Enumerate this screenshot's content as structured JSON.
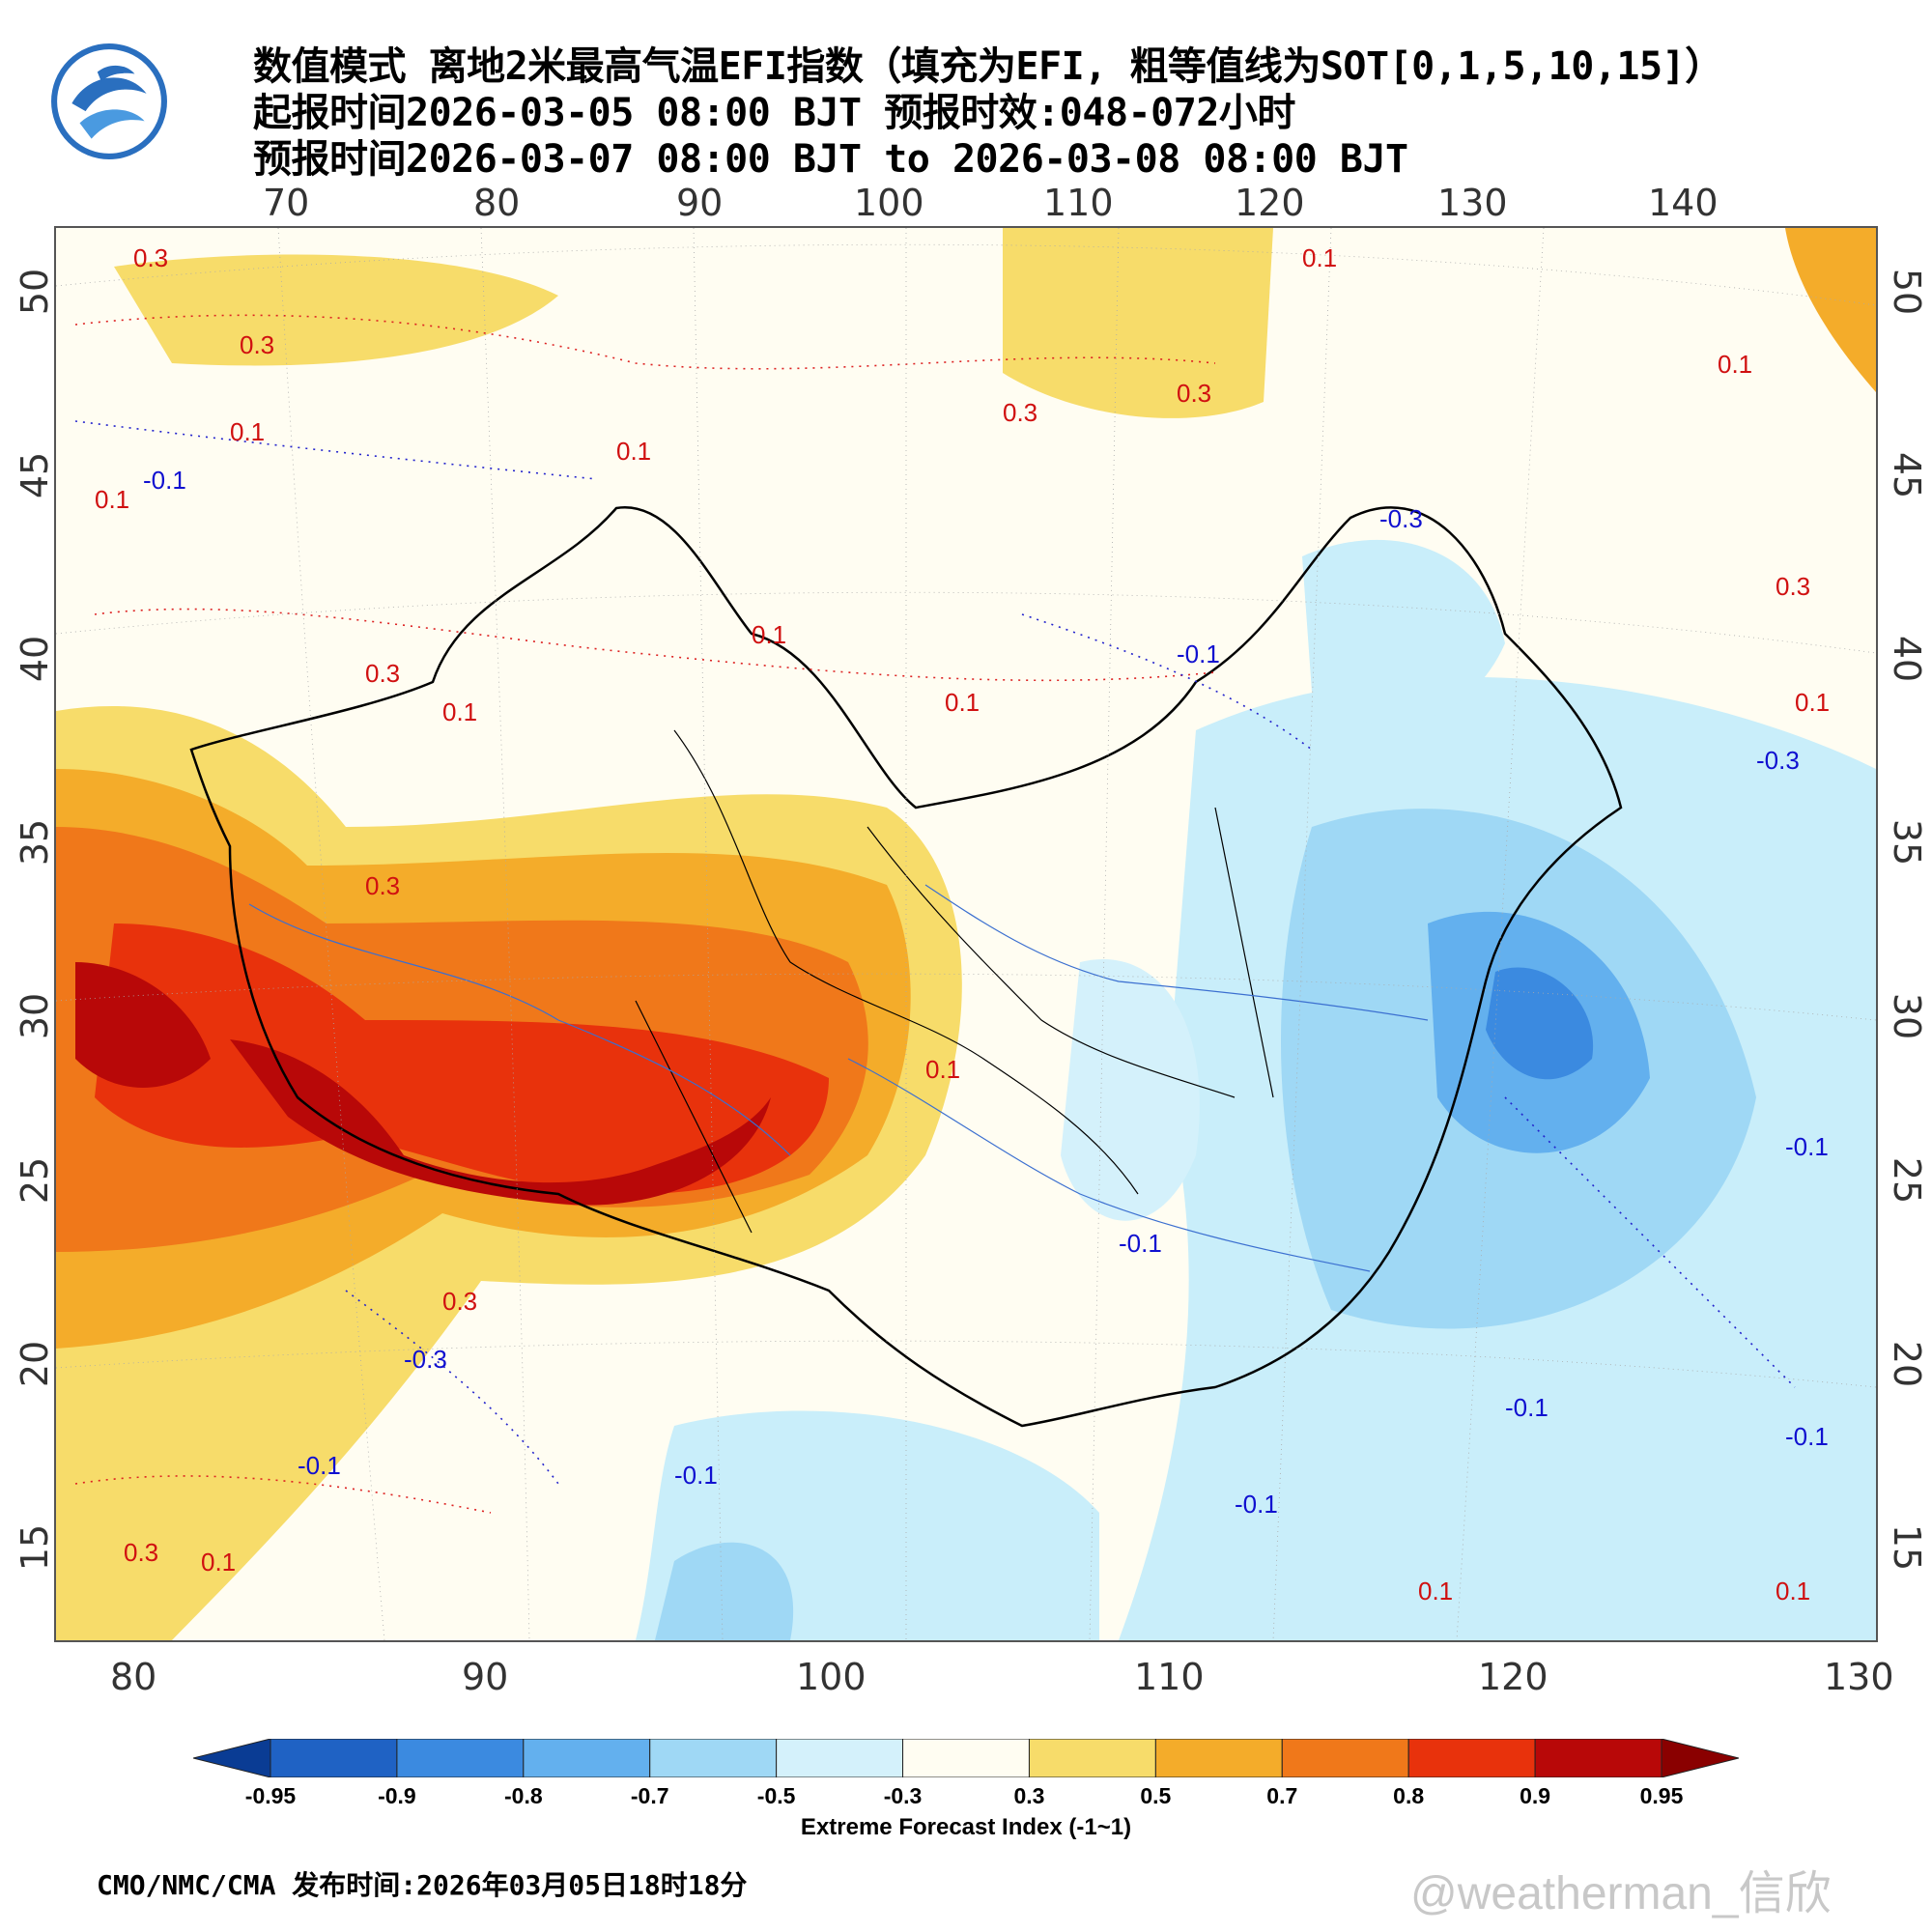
{
  "header": {
    "line1": "数值模式 离地2米最高气温EFI指数（填充为EFI, 粗等值线为SOT[0,1,5,10,15]）",
    "line2": "起报时间2026-03-05 08:00 BJT 预报时效:048-072小时",
    "line3": "预报时间2026-03-07 08:00 BJT to 2026-03-08 08:00 BJT"
  },
  "logo": {
    "icon": "cma-logo-icon",
    "color": "#1f5fa8"
  },
  "top_axis_ticks": [
    "70",
    "80",
    "90",
    "100",
    "110",
    "120",
    "130",
    "140"
  ],
  "bottom_axis_ticks": [
    "80",
    "90",
    "100",
    "110",
    "120",
    "130"
  ],
  "left_axis_ticks": [
    "50",
    "45",
    "40",
    "35",
    "30",
    "25",
    "20",
    "15"
  ],
  "right_axis_ticks": [
    "50",
    "45",
    "40",
    "35",
    "30",
    "25",
    "20",
    "15"
  ],
  "contour_labels": {
    "warm": [
      "0.3",
      "0.3",
      "0.1",
      "0.1",
      "0.1",
      "0.3",
      "0.3",
      "0.1",
      "0.1",
      "0.3",
      "0.1",
      "0.3",
      "0.1",
      "0.3",
      "0.1",
      "0.1",
      "0.1",
      "0.3",
      "0.3",
      "0.1",
      "0.1",
      "0.1"
    ],
    "cool": [
      "-0.1",
      "-0.1",
      "-0.3",
      "-0.3",
      "-0.1",
      "-0.1",
      "-0.1",
      "-0.1",
      "-0.3",
      "-0.1",
      "-0.1",
      "-0.1"
    ]
  },
  "colorbar": {
    "labels": [
      "-0.95",
      "-0.9",
      "-0.8",
      "-0.7",
      "-0.5",
      "-0.3",
      "0.3",
      "0.5",
      "0.7",
      "0.8",
      "0.9",
      "0.95"
    ],
    "colors": [
      "#0a3c94",
      "#1f62c4",
      "#3b8ae0",
      "#63b0ee",
      "#9fd8f5",
      "#d4f1fb",
      "#fffdf2",
      "#f7dc6a",
      "#f4ac2a",
      "#f0781a",
      "#e8320c",
      "#b80808",
      "#8a0000"
    ],
    "title": "Extreme Forecast Index (-1~1)"
  },
  "footer": {
    "source": "CMO/NMC/CMA 发布时间:2026年03月05日18时18分",
    "watermark": "@weatherman_信欣"
  }
}
